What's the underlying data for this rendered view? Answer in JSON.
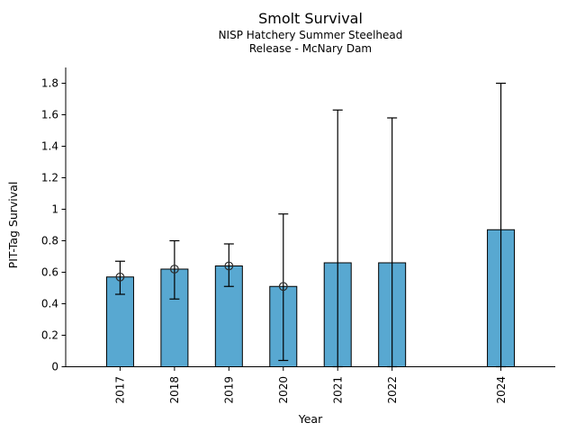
{
  "chart_data": {
    "type": "bar",
    "title": "Smolt Survival",
    "subtitle_line1": "NISP Hatchery Summer Steelhead",
    "subtitle_line2": "Release - McNary Dam",
    "xlabel": "Year",
    "ylabel": "PIT-Tag Survival",
    "categories": [
      "2017",
      "2018",
      "2019",
      "2020",
      "2021",
      "2022",
      "2024"
    ],
    "years": [
      2017,
      2018,
      2019,
      2020,
      2021,
      2022,
      2024
    ],
    "values": [
      0.57,
      0.62,
      0.64,
      0.51,
      0.66,
      0.66,
      0.87
    ],
    "error_low": [
      0.46,
      0.43,
      0.51,
      0.04,
      0.0,
      0.0,
      0.0
    ],
    "error_high": [
      0.67,
      0.8,
      0.78,
      0.97,
      1.63,
      1.58,
      1.8
    ],
    "point_markers": [
      true,
      true,
      true,
      true,
      false,
      false,
      false
    ],
    "marker": "open-circle",
    "yticks": [
      0,
      0.2,
      0.4,
      0.6,
      0.8,
      1.0,
      1.2,
      1.4,
      1.6,
      1.8
    ],
    "ytick_labels": [
      "0",
      "0.2",
      "0.4",
      "0.6",
      "0.8",
      "1",
      "1.2",
      "1.4",
      "1.6",
      "1.8"
    ],
    "ylim": [
      0,
      1.9
    ],
    "xlim": [
      2016,
      2025
    ],
    "missing_years": [
      2023
    ],
    "grid": false,
    "legend": "none",
    "colors": {
      "bar_fill": "#58a8d1",
      "bar_edge": "#000000",
      "error_bar": "#000000",
      "marker_edge": "#2b2b2b",
      "text": "#000000",
      "axis": "#000000",
      "background": "#ffffff"
    }
  }
}
